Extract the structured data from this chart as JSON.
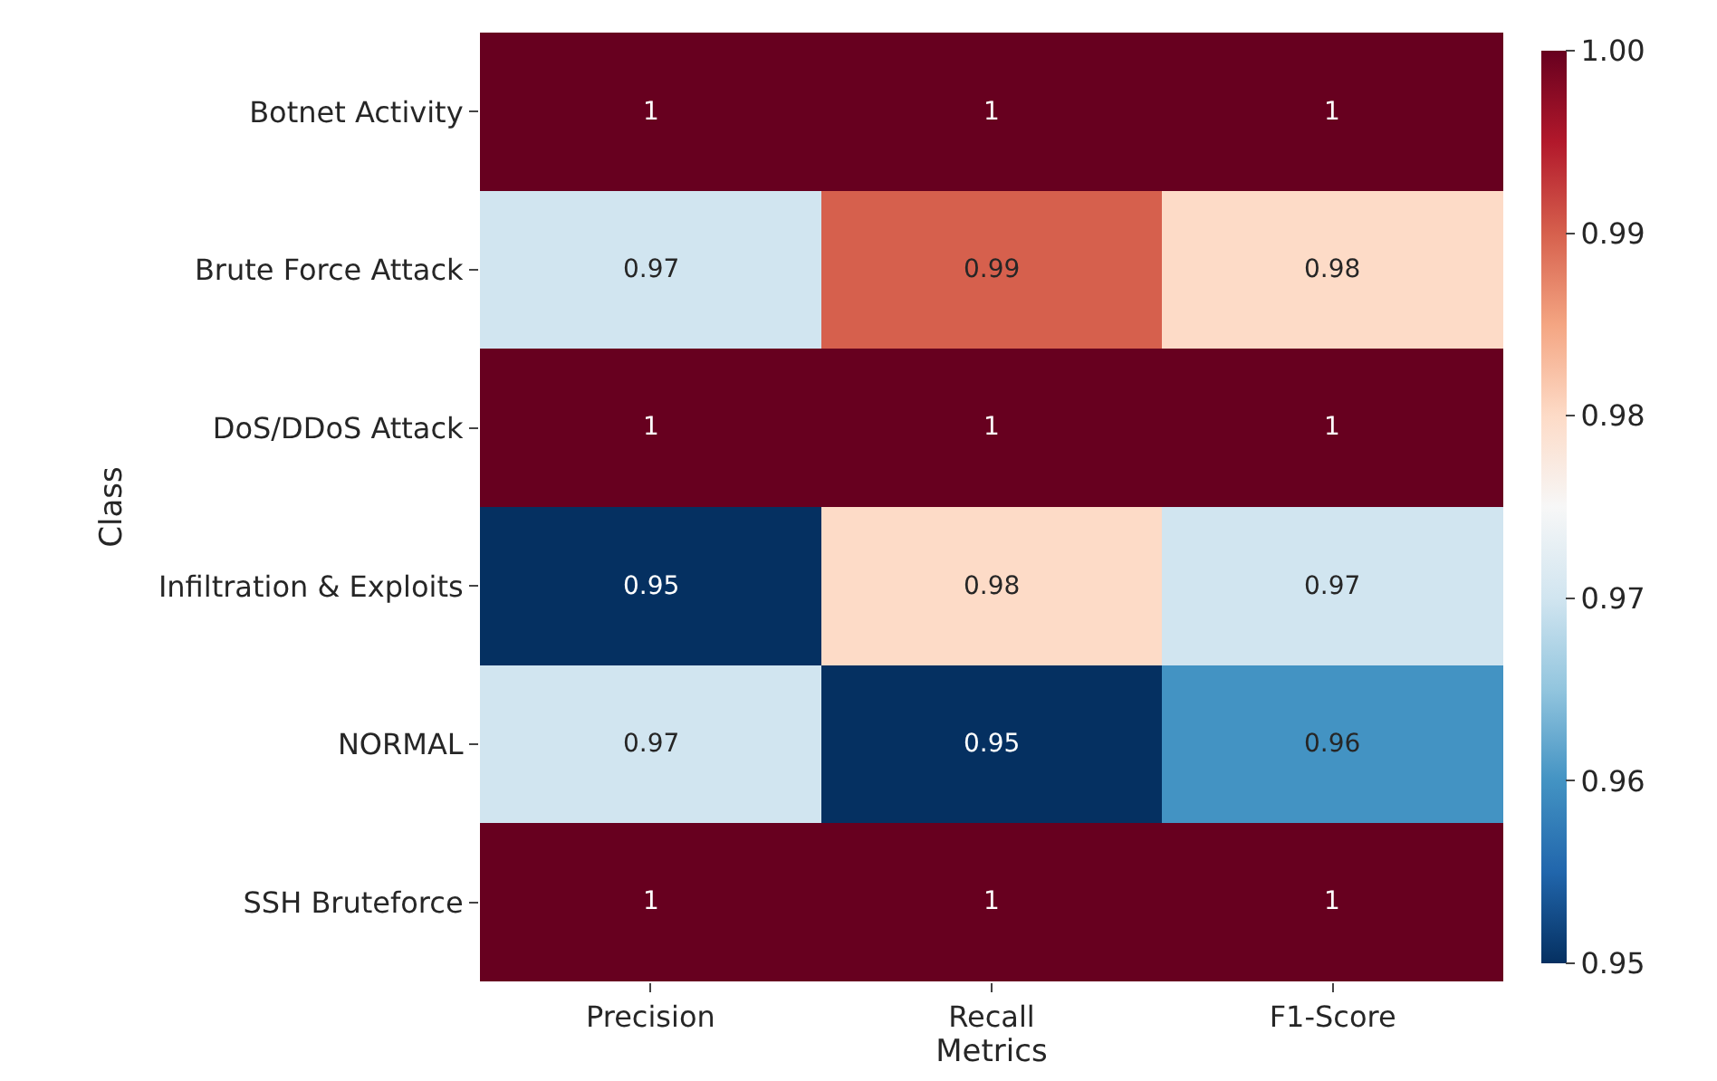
{
  "chart_data": {
    "type": "heatmap",
    "xlabel": "Metrics",
    "ylabel": "Class",
    "categories": [
      "Precision",
      "Recall",
      "F1-Score"
    ],
    "y_categories": [
      "Botnet Activity",
      "Brute Force Attack",
      "DoS/DDoS Attack",
      "Infiltration & Exploits",
      "NORMAL",
      "SSH Bruteforce"
    ],
    "cells": [
      [
        1,
        1,
        1
      ],
      [
        0.97,
        0.99,
        0.98
      ],
      [
        1,
        1,
        1
      ],
      [
        0.95,
        0.98,
        0.97
      ],
      [
        0.97,
        0.95,
        0.96
      ],
      [
        1,
        1,
        1
      ]
    ],
    "data_labels": true,
    "clim": [
      0.95,
      1.0
    ],
    "cticks": [
      0.95,
      0.96,
      0.97,
      0.98,
      0.99,
      {
        "value": 1.0,
        "label": "1.00"
      }
    ]
  }
}
